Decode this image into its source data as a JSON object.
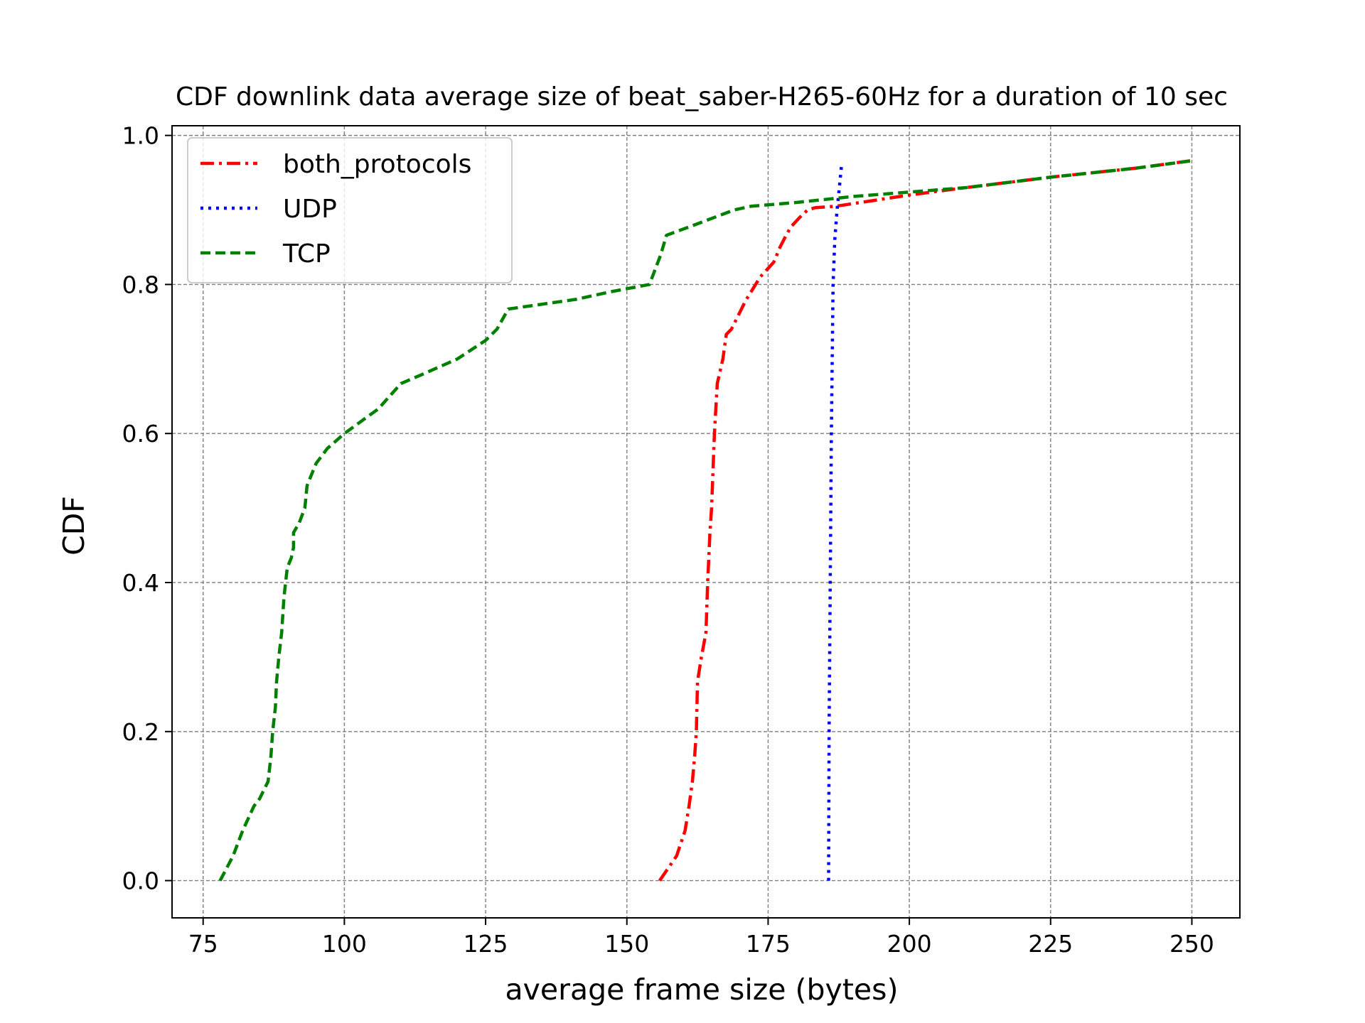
{
  "chart_data": {
    "type": "line",
    "title": "CDF downlink data average size of beat_saber-H265-60Hz for a duration of 10 sec",
    "xlabel": "average frame size (bytes)",
    "ylabel": "CDF",
    "xlim": [
      69.5,
      258.5
    ],
    "ylim": [
      -0.05,
      1.013
    ],
    "xticks": [
      75,
      100,
      125,
      150,
      175,
      200,
      225,
      250
    ],
    "xtick_labels": [
      "75",
      "100",
      "125",
      "150",
      "175",
      "200",
      "225",
      "250"
    ],
    "yticks": [
      0.0,
      0.2,
      0.4,
      0.6,
      0.8,
      1.0
    ],
    "ytick_labels": [
      "0.0",
      "0.2",
      "0.4",
      "0.6",
      "0.8",
      "1.0"
    ],
    "grid": true,
    "legend_position": "top-left",
    "series": [
      {
        "name": "both_protocols",
        "color": "#ff0000",
        "style": "dashdot",
        "x": [
          155.8,
          158.8,
          160.3,
          161.0,
          161.6,
          162.0,
          162.3,
          162.5,
          163.2,
          164.0,
          164.3,
          164.7,
          165.0,
          165.5,
          166.0,
          167.0,
          167.6,
          168.5,
          171.0,
          173.6,
          176.0,
          177.1,
          178.2,
          179.0,
          180.6,
          182.0,
          183.3,
          187.0,
          200.0,
          210.0,
          225.0,
          240.0,
          249.8
        ],
        "y": [
          0.0,
          0.033,
          0.067,
          0.1,
          0.133,
          0.167,
          0.2,
          0.267,
          0.3,
          0.333,
          0.4,
          0.467,
          0.5,
          0.6,
          0.667,
          0.7,
          0.733,
          0.74,
          0.778,
          0.81,
          0.83,
          0.85,
          0.866,
          0.877,
          0.89,
          0.9,
          0.903,
          0.905,
          0.92,
          0.93,
          0.944,
          0.956,
          0.966
        ]
      },
      {
        "name": "UDP",
        "color": "#0000ff",
        "style": "dotted",
        "x": [
          185.7,
          185.8,
          186.0,
          186.2,
          186.5,
          186.8,
          187.2,
          187.6,
          188.0
        ],
        "y": [
          0.0,
          0.2,
          0.4,
          0.6,
          0.8,
          0.86,
          0.9,
          0.93,
          0.96
        ]
      },
      {
        "name": "TCP",
        "color": "#008000",
        "style": "dashed",
        "x": [
          78.0,
          80.3,
          82.0,
          84.0,
          85.0,
          86.5,
          87.0,
          87.3,
          87.8,
          88.0,
          88.4,
          88.9,
          89.3,
          89.6,
          89.9,
          90.6,
          91.0,
          91.0,
          92.0,
          93.0,
          93.4,
          94.3,
          95.0,
          97.0,
          100.0,
          106.0,
          110.0,
          114.0,
          120.0,
          125.0,
          127.0,
          129.0,
          141.0,
          147.0,
          154.0,
          155.0,
          156.0,
          157.0,
          162.0,
          169.0,
          172.0,
          180.0,
          190.0,
          200.0,
          210.0,
          225.0,
          240.0,
          250.0
        ],
        "y": [
          0.0,
          0.033,
          0.067,
          0.1,
          0.11,
          0.133,
          0.167,
          0.2,
          0.233,
          0.267,
          0.3,
          0.333,
          0.38,
          0.4,
          0.42,
          0.433,
          0.447,
          0.467,
          0.48,
          0.5,
          0.53,
          0.547,
          0.56,
          0.58,
          0.6,
          0.633,
          0.667,
          0.68,
          0.7,
          0.725,
          0.74,
          0.767,
          0.78,
          0.79,
          0.8,
          0.82,
          0.84,
          0.866,
          0.88,
          0.9,
          0.905,
          0.91,
          0.918,
          0.924,
          0.93,
          0.944,
          0.956,
          0.966
        ]
      }
    ]
  }
}
